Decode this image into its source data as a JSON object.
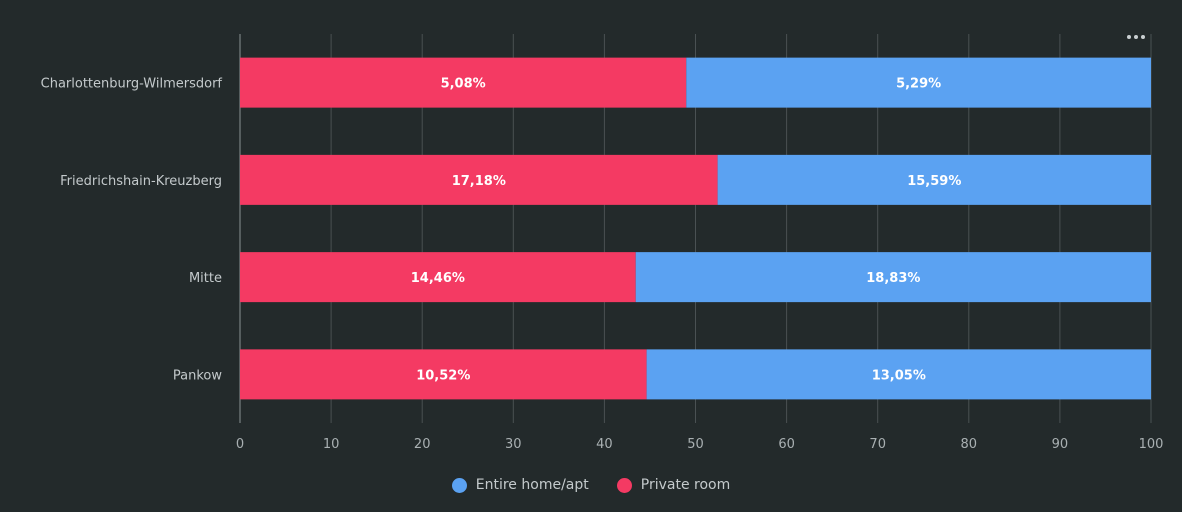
{
  "chart_data": {
    "type": "bar",
    "orientation": "horizontal",
    "stacked": true,
    "stack_mode": "percent",
    "categories": [
      "Charlottenburg-Wilmersdorf",
      "Friedrichshain-Kreuzberg",
      "Mitte",
      "Pankow"
    ],
    "series": [
      {
        "name": "Private room",
        "color": "#f43a63",
        "values": [
          5.08,
          17.18,
          14.46,
          10.52
        ],
        "labels": [
          "5,08%",
          "17,18%",
          "14,46%",
          "10,52%"
        ]
      },
      {
        "name": "Entire home/apt",
        "color": "#5ba2f2",
        "values": [
          5.29,
          15.59,
          18.83,
          13.05
        ],
        "labels": [
          "5,29%",
          "15,59%",
          "18,83%",
          "13,05%"
        ]
      }
    ],
    "xlim": [
      0,
      100
    ],
    "xticks": [
      0,
      10,
      20,
      30,
      40,
      50,
      60,
      70,
      80,
      90,
      100
    ],
    "grid": true,
    "legend_position": "bottom-center"
  },
  "legend": [
    {
      "label": "Entire home/apt",
      "color": "#5ba2f2"
    },
    {
      "label": "Private room",
      "color": "#f43a63"
    }
  ],
  "menu_icon": "more-horizontal-icon"
}
